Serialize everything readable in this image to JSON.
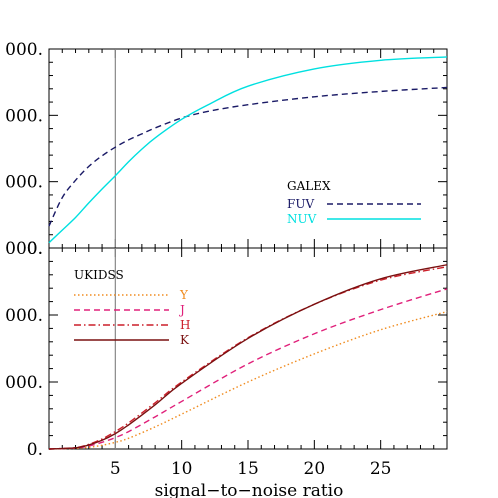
{
  "chart_data": [
    {
      "type": "line",
      "panel": "top",
      "xlim": [
        0,
        30
      ],
      "ylim": [
        0,
        3000
      ],
      "x_ticks": [
        5,
        10,
        15,
        20,
        25
      ],
      "y_ticks": [
        {
          "value": 0,
          "label": "0."
        },
        {
          "value": 1000,
          "label": "000."
        },
        {
          "value": 2000,
          "label": "000."
        },
        {
          "value": 3000,
          "label": "000."
        }
      ],
      "vline": 5,
      "legend_title": "GALEX",
      "legend_position": "bottom-right",
      "series": [
        {
          "name": "FUV",
          "color": "#1a1a66",
          "dash": "dashed",
          "x": [
            0,
            1,
            2,
            3,
            4,
            5,
            6,
            7,
            8,
            10,
            12,
            15,
            20,
            25,
            30
          ],
          "y": [
            330,
            760,
            1020,
            1230,
            1390,
            1520,
            1630,
            1720,
            1810,
            1960,
            2060,
            2160,
            2280,
            2360,
            2420
          ]
        },
        {
          "name": "NUV",
          "color": "#00e0e0",
          "dash": "solid",
          "x": [
            0,
            1,
            2,
            3,
            4,
            5,
            6,
            7,
            8,
            10,
            12,
            15,
            20,
            25,
            30
          ],
          "y": [
            80,
            270,
            460,
            680,
            890,
            1090,
            1300,
            1490,
            1660,
            1940,
            2160,
            2440,
            2700,
            2830,
            2880
          ]
        }
      ]
    },
    {
      "type": "line",
      "panel": "bottom",
      "xlim": [
        0,
        30
      ],
      "ylim": [
        0,
        3000
      ],
      "x_ticks": [
        5,
        10,
        15,
        20,
        25
      ],
      "x_tick_labels": [
        "5",
        "10",
        "15",
        "20",
        "25"
      ],
      "y_ticks": [
        {
          "value": 0,
          "label": "0."
        },
        {
          "value": 1000,
          "label": "000."
        },
        {
          "value": 2000,
          "label": "000."
        },
        {
          "value": 3000,
          "label": "000."
        }
      ],
      "vline": 5,
      "xlabel": "signal−to−noise ratio",
      "legend_title": "UKIDSS",
      "legend_position": "top-left",
      "series": [
        {
          "name": "Y",
          "color": "#f08c20",
          "dash": "dotted",
          "x": [
            0,
            2,
            3,
            4,
            5,
            6,
            8,
            10,
            15,
            20,
            25,
            30
          ],
          "y": [
            0,
            10,
            25,
            55,
            100,
            160,
            330,
            520,
            1000,
            1420,
            1780,
            2050
          ]
        },
        {
          "name": "J",
          "color": "#e0207a",
          "dash": "dashed",
          "x": [
            0,
            2,
            3,
            4,
            5,
            6,
            8,
            10,
            15,
            20,
            25,
            30
          ],
          "y": [
            0,
            15,
            45,
            100,
            170,
            260,
            480,
            710,
            1270,
            1720,
            2080,
            2390
          ]
        },
        {
          "name": "H",
          "color": "#cc1f2a",
          "dash": "dashdot",
          "x": [
            0,
            2,
            3,
            4,
            5,
            6,
            8,
            10,
            15,
            20,
            25,
            30
          ],
          "y": [
            0,
            20,
            70,
            150,
            260,
            390,
            690,
            1000,
            1660,
            2160,
            2520,
            2720
          ]
        },
        {
          "name": "K",
          "color": "#7a1010",
          "dash": "solid",
          "x": [
            0,
            2,
            3,
            4,
            5,
            6,
            8,
            10,
            15,
            20,
            25,
            30
          ],
          "y": [
            0,
            18,
            60,
            130,
            230,
            360,
            660,
            980,
            1650,
            2160,
            2540,
            2750
          ]
        }
      ]
    }
  ]
}
